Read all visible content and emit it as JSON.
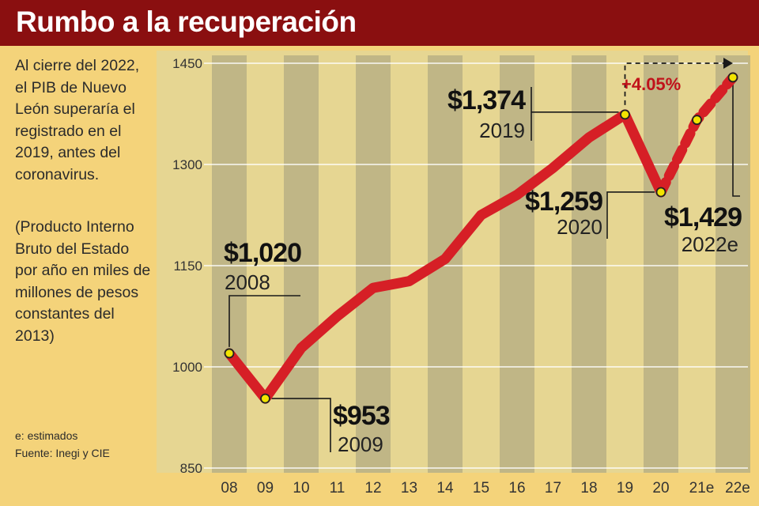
{
  "header": {
    "title": "Rumbo a la recuperación"
  },
  "sidebar": {
    "intro": "Al cierre del 2022, el PIB de Nuevo León superaría el registrado en el 2019, antes del coronavirus.",
    "note": "(Producto Interno Bruto del Estado por año en miles de millones de pesos constantes del 2013)",
    "estimate_note": "e: estimados",
    "source": "Fuente: Inegi y CIE"
  },
  "colors": {
    "header_bg": "#8a0f10",
    "panel_bg": "#f4d37a",
    "plot_bg": "#e6d692",
    "stripe": "#b9b084",
    "line": "#d61f26",
    "marker": "#f2e300",
    "accent_text": "#c1121a"
  },
  "chart_data": {
    "type": "line",
    "categories": [
      "08",
      "09",
      "10",
      "11",
      "12",
      "13",
      "14",
      "15",
      "16",
      "17",
      "18",
      "19",
      "20",
      "21e",
      "22e"
    ],
    "series": [
      {
        "values": [
          1020,
          953,
          1028,
          1075,
          1117,
          1127,
          1160,
          1225,
          1255,
          1295,
          1340,
          1374,
          1259,
          1366,
          1429
        ],
        "style": "solid line through 20, dashed for 21e and 22e"
      }
    ],
    "ylim": [
      850,
      1450
    ],
    "yticks": [
      850,
      1000,
      1150,
      1300,
      1450
    ],
    "grid": true,
    "title": "",
    "xlabel": "",
    "ylabel": "",
    "annotations": [
      {
        "category": "08",
        "value": "$1,020",
        "year": "2008"
      },
      {
        "category": "09",
        "value": "$953",
        "year": "2009"
      },
      {
        "category": "19",
        "value": "$1,374",
        "year": "2019"
      },
      {
        "category": "20",
        "value": "$1,259",
        "year": "2020"
      },
      {
        "category": "22e",
        "value": "$1,429",
        "year": "2022e"
      }
    ],
    "growth_label": "+4.05%"
  }
}
